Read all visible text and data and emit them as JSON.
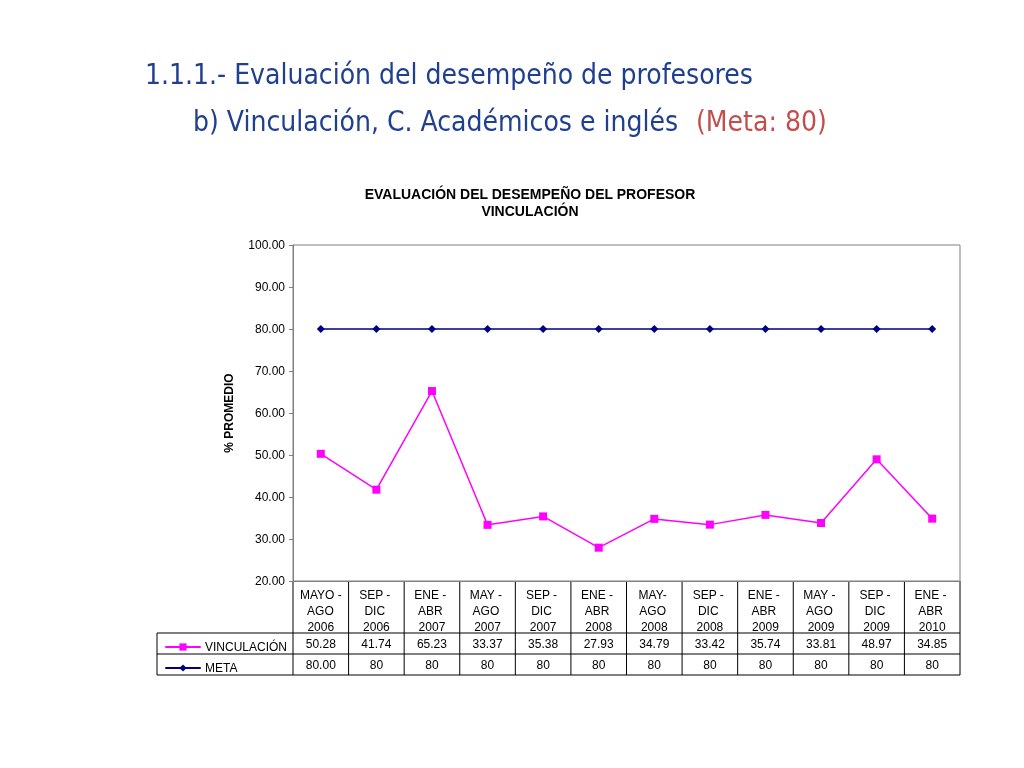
{
  "chart_data": {
    "type": "line",
    "title": "EVALUACIÓN DEL DESEMPEÑO DEL PROFESOR\nVINCULACIÓN",
    "annotations": [
      "1.1.1.- Evaluación del desempeño de profesores",
      "b) Vinculación, C. Académicos e inglés",
      "(Meta: 80)"
    ],
    "ylabel": "% PROMEDIO",
    "categories": [
      "MAYO - AGO 2006",
      "SEP - DIC 2006",
      "ENE - ABR 2007",
      "MAY - AGO 2007",
      "SEP - DIC 2007",
      "ENE - ABR 2008",
      "MAY- AGO 2008",
      "SEP - DIC 2008",
      "ENE - ABR 2009",
      "MAY - AGO 2009",
      "SEP - DIC 2009",
      "ENE - ABR 2010"
    ],
    "series": [
      {
        "name": "VINCULACIÓN",
        "color": "#ff00ff",
        "marker": "square",
        "values": [
          50.28,
          41.74,
          65.23,
          33.37,
          35.38,
          27.93,
          34.79,
          33.42,
          35.74,
          33.81,
          48.97,
          34.85
        ],
        "value_labels": [
          "50.28",
          "41.74",
          "65.23",
          "33.37",
          "35.38",
          "27.93",
          "34.79",
          "33.42",
          "35.74",
          "33.81",
          "48.97",
          "34.85"
        ]
      },
      {
        "name": "META",
        "color": "#000080",
        "marker": "diamond",
        "values": [
          80,
          80,
          80,
          80,
          80,
          80,
          80,
          80,
          80,
          80,
          80,
          80
        ],
        "value_labels": [
          "80.00",
          "80",
          "80",
          "80",
          "80",
          "80",
          "80",
          "80",
          "80",
          "80",
          "80",
          "80"
        ]
      }
    ],
    "ylim": [
      20,
      100
    ],
    "yticks": [
      {
        "value": 20,
        "label": "20.00"
      },
      {
        "value": 30,
        "label": "30.00"
      },
      {
        "value": 40,
        "label": "40.00"
      },
      {
        "value": 50,
        "label": "50.00"
      },
      {
        "value": 60,
        "label": "60.00"
      },
      {
        "value": 70,
        "label": "70.00"
      },
      {
        "value": 80,
        "label": "80.00"
      },
      {
        "value": 90,
        "label": "90.00"
      },
      {
        "value": 100,
        "label": "100.00"
      }
    ],
    "grid": false,
    "legend": "bottom left",
    "line_style": "solid"
  }
}
